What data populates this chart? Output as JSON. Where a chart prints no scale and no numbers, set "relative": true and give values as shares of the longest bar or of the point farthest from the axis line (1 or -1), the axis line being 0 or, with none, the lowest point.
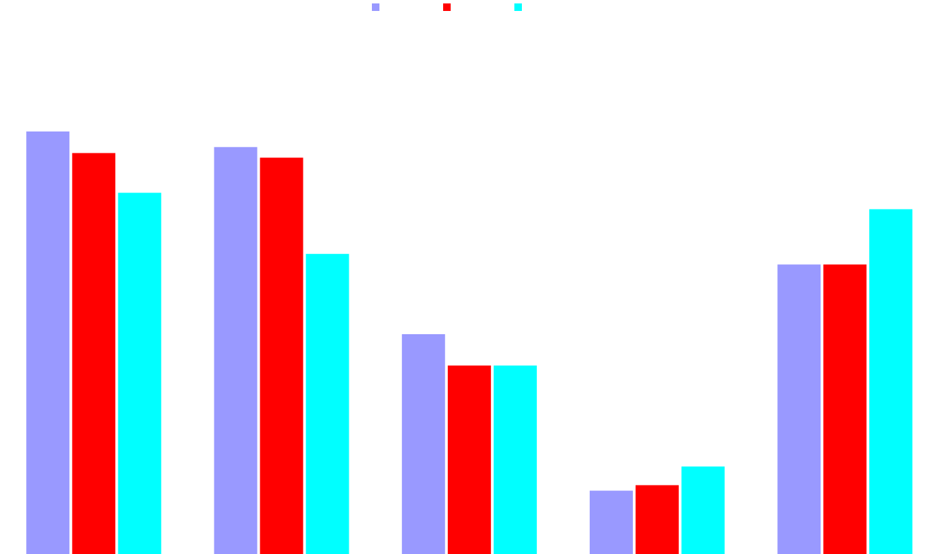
{
  "chart_data": {
    "type": "bar",
    "relative": true,
    "categories": [
      null,
      null,
      null,
      null,
      null
    ],
    "series": [
      {
        "color": "#9999ff",
        "values": [
          1,
          0.963,
          0.52,
          0.15,
          0.685
        ]
      },
      {
        "color": "#ff0000",
        "values": [
          0.949,
          0.938,
          0.446,
          0.163,
          0.685
        ]
      },
      {
        "color": "#00ffff",
        "values": [
          0.855,
          0.71,
          0.446,
          0.207,
          0.816
        ]
      }
    ],
    "grid": false
  }
}
